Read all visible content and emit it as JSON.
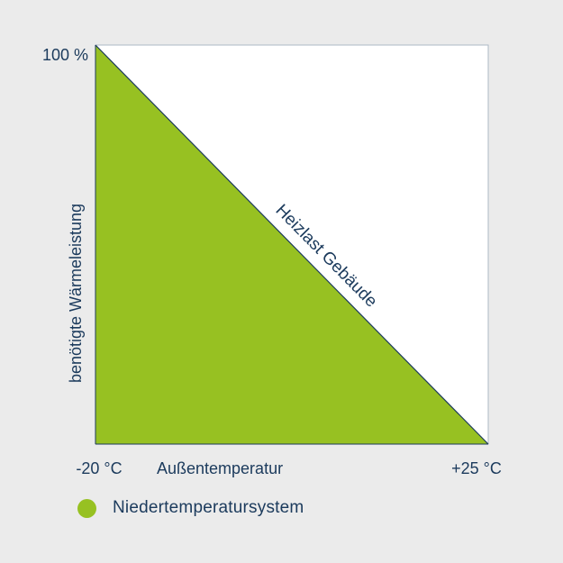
{
  "chart_data": {
    "type": "area",
    "title": "",
    "xlabel": "Außentemperatur",
    "ylabel": "benötigte Wärmeleistung",
    "x": [
      -20,
      25
    ],
    "xlim": [
      -20,
      25
    ],
    "ylim": [
      0,
      100
    ],
    "x_tick_labels": [
      "-20 °C",
      "+25 °C"
    ],
    "y_tick_labels": [
      "100 %"
    ],
    "series": [
      {
        "name": "Niedertemperatursystem",
        "values": [
          100,
          0
        ],
        "color": "#97c122"
      }
    ],
    "line_annotation": "Heizlast Gebäude",
    "line_color": "#1b3a5c",
    "plot_background": "#ffffff",
    "grid": false,
    "legend_position": "bottom-left"
  }
}
